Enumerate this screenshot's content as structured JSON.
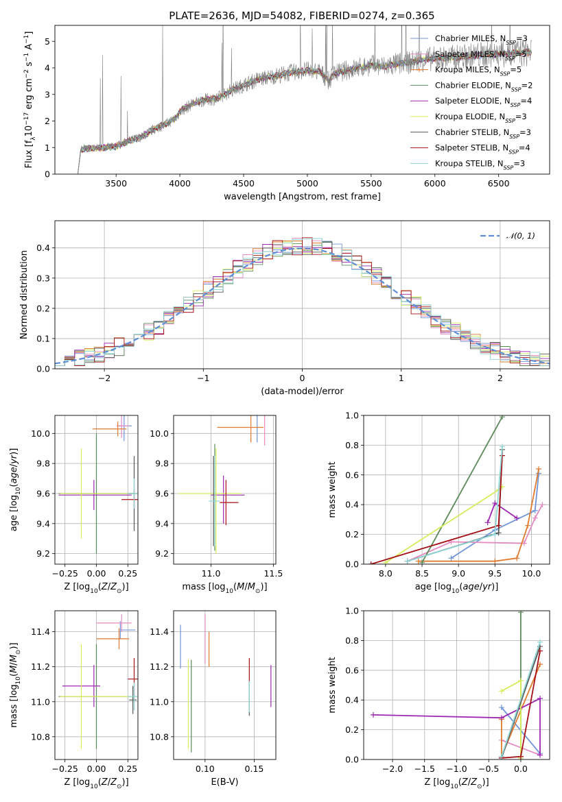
{
  "title": "PLATE=2636, MJD=54082, FIBERID=0274, z=0.365",
  "colors": {
    "Chabrier MILES": "#6f94d8",
    "Salpeter MILES": "#e58ac0",
    "Kroupa MILES": "#e07a2e",
    "Chabrier ELODIE": "#5a8a5a",
    "Salpeter ELODIE": "#9c27b0",
    "Kroupa ELODIE": "#d4ed5a",
    "Chabrier STELIB": "#555555",
    "Salpeter STELIB": "#a50f15",
    "Kroupa STELIB": "#8fd6d6",
    "data": "#808080",
    "normal": "#5b8ed6"
  },
  "chart_data": [
    {
      "id": "spectrum",
      "type": "line",
      "xlabel": "wavelength [Angstrom, rest frame]",
      "ylabel": "Flux [f_λ 10^-17 erg cm^-2 s^-1 A^-1]",
      "xlim": [
        3020,
        6900
      ],
      "ylim": [
        0,
        5.6
      ],
      "xticks": [
        3500,
        4000,
        4500,
        5000,
        5500,
        6000,
        6500
      ],
      "yticks": [
        0,
        1,
        2,
        3,
        4,
        5
      ],
      "continuum": [
        [
          3200,
          0
        ],
        [
          3220,
          0.95
        ],
        [
          3400,
          1.0
        ],
        [
          3500,
          1.05
        ],
        [
          3600,
          1.25
        ],
        [
          3700,
          1.4
        ],
        [
          3800,
          1.7
        ],
        [
          3900,
          1.9
        ],
        [
          3960,
          2.1
        ],
        [
          4000,
          2.35
        ],
        [
          4100,
          2.65
        ],
        [
          4200,
          2.8
        ],
        [
          4300,
          2.85
        ],
        [
          4400,
          3.15
        ],
        [
          4500,
          3.35
        ],
        [
          4600,
          3.55
        ],
        [
          4700,
          3.65
        ],
        [
          4800,
          3.75
        ],
        [
          4900,
          3.85
        ],
        [
          5000,
          3.9
        ],
        [
          5100,
          3.85
        ],
        [
          5170,
          3.5
        ],
        [
          5200,
          3.75
        ],
        [
          5300,
          3.9
        ],
        [
          5400,
          4.0
        ],
        [
          5500,
          4.1
        ],
        [
          5600,
          4.05
        ],
        [
          5700,
          4.15
        ],
        [
          5800,
          4.2
        ],
        [
          5900,
          4.3
        ],
        [
          6000,
          4.35
        ],
        [
          6200,
          4.4
        ],
        [
          6400,
          4.5
        ],
        [
          6600,
          4.55
        ],
        [
          6760,
          4.6
        ]
      ],
      "legend_position": "upper right",
      "legend": [
        "Chabrier MILES, N_SSP=3",
        "Salpeter MILES, N_SSP=5",
        "Kroupa MILES, N_SSP=5",
        "Chabrier ELODIE, N_SSP=2",
        "Salpeter ELODIE, N_SSP=4",
        "Kroupa ELODIE, N_SSP=3",
        "Chabrier STELIB, N_SSP=3",
        "Salpeter STELIB, N_SSP=4",
        "Kroupa STELIB, N_SSP=3"
      ]
    },
    {
      "id": "residuals",
      "type": "line",
      "xlabel": "(data-model)/error",
      "ylabel": "Normed distribution",
      "xlim": [
        -2.5,
        2.5
      ],
      "ylim": [
        0,
        0.49
      ],
      "xticks": [
        -2,
        -1,
        0,
        1,
        2
      ],
      "yticks": [
        0.0,
        0.1,
        0.2,
        0.3,
        0.4
      ],
      "grid": true,
      "normal_label": "𝒩(0, 1)",
      "legend_position": "upper right"
    },
    {
      "id": "age-vs-z",
      "type": "scatter",
      "xlabel": "Z [log10(Z/Z☉)]",
      "ylabel": "age  [log10(age/yr)]",
      "xlim": [
        -0.33,
        0.33
      ],
      "ylim": [
        9.13,
        10.12
      ],
      "xticks": [
        -0.25,
        0.0,
        0.25
      ],
      "yticks": [
        9.2,
        9.4,
        9.6,
        9.8,
        10.0
      ],
      "grid": true,
      "points": [
        {
          "model": "Chabrier MILES",
          "x": 0.22,
          "y": 10.05,
          "xerr": [
            0.0,
            0.0
          ],
          "yerr": [
            0.1,
            0.1
          ]
        },
        {
          "model": "Salpeter MILES",
          "x": 0.2,
          "y": 10.05,
          "xerr": [
            0.0,
            0.0
          ],
          "yerr": [
            0.08,
            0.08
          ]
        },
        {
          "model": "Kroupa MILES",
          "x": 0.17,
          "y": 10.03,
          "xerr": [
            0.0,
            0.0
          ],
          "yerr": [
            0.05,
            0.05
          ]
        },
        {
          "model": "Chabrier ELODIE",
          "x": 0.0,
          "y": 9.6,
          "xerr": [
            0.0,
            0.0
          ],
          "yerr": [
            0.4,
            0.4
          ]
        },
        {
          "model": "Salpeter ELODIE",
          "x": -0.02,
          "y": 9.59,
          "xerr": [
            0.0,
            0.0
          ],
          "yerr": [
            0.1,
            0.1
          ]
        },
        {
          "model": "Kroupa ELODIE",
          "x": -0.12,
          "y": 9.6,
          "xerr": [
            0.0,
            0.0
          ],
          "yerr": [
            0.3,
            0.3
          ]
        },
        {
          "model": "Chabrier STELIB",
          "x": 0.3,
          "y": 9.6,
          "xerr": [
            0.0,
            0.0
          ],
          "yerr": [
            0.25,
            0.25
          ]
        },
        {
          "model": "Salpeter STELIB",
          "x": 0.3,
          "y": 9.56,
          "xerr": [
            0.0,
            0.0
          ],
          "yerr": [
            0.06,
            0.06
          ]
        },
        {
          "model": "Kroupa STELIB",
          "x": 0.3,
          "y": 9.6,
          "xerr": [
            0.0,
            0.0
          ],
          "yerr": [
            0.1,
            0.1
          ]
        }
      ]
    },
    {
      "id": "age-vs-mass",
      "type": "scatter",
      "xlabel": "mass [log10(M/M☉)]",
      "ylabel": "",
      "xlim": [
        10.7,
        11.52
      ],
      "ylim": [
        9.13,
        10.12
      ],
      "xticks": [
        11.0,
        11.5
      ],
      "yticks": [
        9.2,
        9.4,
        9.6,
        9.8,
        10.0
      ],
      "grid": true
    },
    {
      "id": "weight-vs-age",
      "type": "line",
      "xlabel": "age  [log10(age/yr)]",
      "ylabel": "mass weight",
      "xlim": [
        7.7,
        10.25
      ],
      "ylim": [
        0,
        1.0
      ],
      "xticks": [
        8.0,
        8.5,
        9.0,
        9.5,
        10.0
      ],
      "yticks": [
        0.0,
        0.2,
        0.4,
        0.6,
        0.8,
        1.0
      ],
      "grid": true,
      "series": [
        {
          "model": "Chabrier MILES",
          "x": [
            8.9,
            9.5,
            10.05,
            10.1
          ],
          "y": [
            0.04,
            0.23,
            0.36,
            0.61
          ]
        },
        {
          "model": "Salpeter MILES",
          "x": [
            8.3,
            8.9,
            9.9,
            10.05,
            10.15
          ],
          "y": [
            0.02,
            0.15,
            0.14,
            0.31,
            0.4
          ]
        },
        {
          "model": "Kroupa MILES",
          "x": [
            8.45,
            9.5,
            9.8,
            9.95,
            10.1
          ],
          "y": [
            0.02,
            0.02,
            0.04,
            0.26,
            0.64
          ]
        },
        {
          "model": "Chabrier ELODIE",
          "x": [
            8.5,
            9.6
          ],
          "y": [
            0.01,
            0.99
          ]
        },
        {
          "model": "Salpeter ELODIE",
          "x": [
            9.4,
            9.5,
            9.8
          ],
          "y": [
            0.28,
            0.41,
            0.31
          ]
        },
        {
          "model": "Kroupa ELODIE",
          "x": [
            8.0,
            9.55,
            9.6
          ],
          "y": [
            0.01,
            0.5,
            0.52
          ]
        },
        {
          "model": "Chabrier STELIB",
          "x": [
            8.3,
            9.55,
            9.6
          ],
          "y": [
            0.02,
            0.21,
            0.77
          ]
        },
        {
          "model": "Salpeter STELIB",
          "x": [
            7.8,
            9.55,
            9.6
          ],
          "y": [
            0.0,
            0.26,
            0.73
          ]
        },
        {
          "model": "Kroupa STELIB",
          "x": [
            8.3,
            9.5,
            9.6
          ],
          "y": [
            0.02,
            0.2,
            0.79
          ]
        }
      ]
    },
    {
      "id": "mass-vs-z",
      "type": "scatter",
      "xlabel": "Z [log10(Z/Z☉)]",
      "ylabel": "mass [log10(M/M☉)]",
      "xlim": [
        -0.33,
        0.33
      ],
      "ylim": [
        10.67,
        11.52
      ],
      "xticks": [
        -0.25,
        0.0,
        0.25
      ],
      "yticks": [
        10.8,
        11.0,
        11.2,
        11.4
      ],
      "grid": true,
      "points": [
        {
          "model": "Chabrier MILES",
          "x": 0.19,
          "y": 11.41,
          "xerr": [
            0.0,
            0.0
          ],
          "yerr": [
            0.05,
            0.05
          ]
        },
        {
          "model": "Salpeter MILES",
          "x": 0.2,
          "y": 11.45,
          "xerr": [
            0.0,
            0.0
          ],
          "yerr": [
            0.05,
            0.05
          ]
        },
        {
          "model": "Kroupa MILES",
          "x": 0.18,
          "y": 11.36,
          "xerr": [
            0.0,
            0.0
          ],
          "yerr": [
            0.06,
            0.06
          ]
        },
        {
          "model": "Chabrier ELODIE",
          "x": 0.0,
          "y": 11.03,
          "xerr": [
            0.0,
            0.0
          ],
          "yerr": [
            0.3,
            0.3
          ]
        },
        {
          "model": "Salpeter ELODIE",
          "x": -0.02,
          "y": 11.09,
          "xerr": [
            0.0,
            0.0
          ],
          "yerr": [
            0.12,
            0.12
          ]
        },
        {
          "model": "Kroupa ELODIE",
          "x": -0.12,
          "y": 11.03,
          "xerr": [
            0.0,
            0.0
          ],
          "yerr": [
            0.3,
            0.3
          ]
        },
        {
          "model": "Chabrier STELIB",
          "x": 0.29,
          "y": 11.01,
          "xerr": [
            0.0,
            0.0
          ],
          "yerr": [
            0.08,
            0.08
          ]
        },
        {
          "model": "Salpeter STELIB",
          "x": 0.3,
          "y": 11.13,
          "xerr": [
            0.0,
            0.0
          ],
          "yerr": [
            0.12,
            0.12
          ]
        },
        {
          "model": "Kroupa STELIB",
          "x": 0.3,
          "y": 11.03,
          "xerr": [
            0.0,
            0.0
          ],
          "yerr": [
            0.08,
            0.08
          ]
        }
      ]
    },
    {
      "id": "mass-vs-ebv",
      "type": "scatter",
      "xlabel": "E(B-V)",
      "ylabel": "",
      "xlim": [
        0.068,
        0.172
      ],
      "ylim": [
        10.67,
        11.52
      ],
      "xticks": [
        0.05,
        0.1,
        0.15
      ],
      "yticks": [
        10.8,
        11.0,
        11.2,
        11.4
      ],
      "grid": true
    },
    {
      "id": "weight-vs-z",
      "type": "line",
      "xlabel": "Z [log10(Z/Z☉)]",
      "ylabel": "mass weight",
      "xlim": [
        -2.45,
        0.45
      ],
      "ylim": [
        0,
        1.0
      ],
      "xticks": [
        -2.0,
        -1.5,
        -1.0,
        -0.5,
        0.0
      ],
      "yticks": [
        0.0,
        0.2,
        0.4,
        0.6,
        0.8,
        1.0
      ],
      "grid": true,
      "series": [
        {
          "model": "Chabrier MILES",
          "x": [
            -0.3,
            0.3
          ],
          "y": [
            0.35,
            0.04
          ]
        },
        {
          "model": "Salpeter MILES",
          "x": [
            -0.3,
            0.3
          ],
          "y": [
            0.13,
            0.03
          ]
        },
        {
          "model": "Kroupa MILES",
          "x": [
            -0.3,
            -0.3,
            0.3
          ],
          "y": [
            0.27,
            0.02,
            0.64
          ]
        },
        {
          "model": "Chabrier ELODIE",
          "x": [
            0.0,
            0.0
          ],
          "y": [
            0.01,
            0.99
          ]
        },
        {
          "model": "Salpeter ELODIE",
          "x": [
            -2.3,
            -0.3,
            0.3,
            0.3
          ],
          "y": [
            0.3,
            0.28,
            0.41,
            0.03
          ]
        },
        {
          "model": "Kroupa ELODIE",
          "x": [
            -0.3,
            0.0,
            0.0
          ],
          "y": [
            0.46,
            0.53,
            0.01
          ]
        },
        {
          "model": "Chabrier STELIB",
          "x": [
            -0.3,
            0.3
          ],
          "y": [
            0.01,
            0.76
          ]
        },
        {
          "model": "Salpeter STELIB",
          "x": [
            -0.3,
            0.0,
            0.3
          ],
          "y": [
            0.01,
            0.02,
            0.73
          ]
        },
        {
          "model": "Kroupa STELIB",
          "x": [
            -0.3,
            0.3
          ],
          "y": [
            0.02,
            0.79
          ]
        }
      ]
    }
  ]
}
